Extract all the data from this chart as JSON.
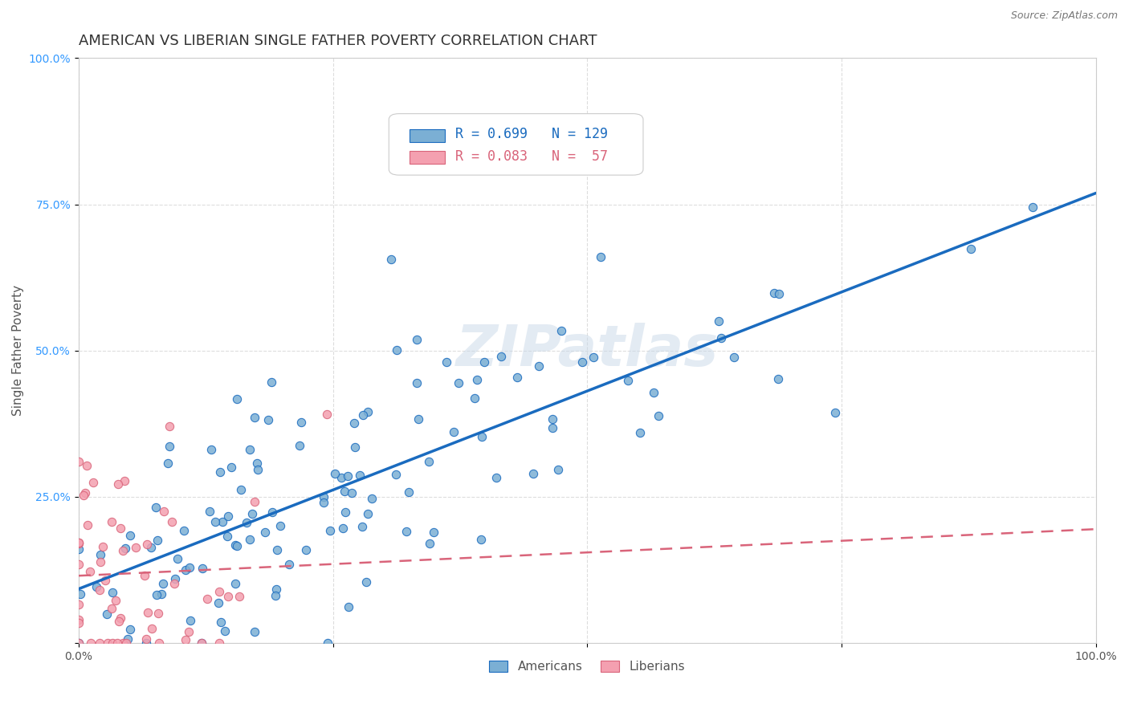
{
  "title": "AMERICAN VS LIBERIAN SINGLE FATHER POVERTY CORRELATION CHART",
  "source": "Source: ZipAtlas.com",
  "xlabel": "",
  "ylabel": "Single Father Poverty",
  "xlim": [
    0,
    1
  ],
  "ylim": [
    0,
    1
  ],
  "xticks": [
    0,
    0.25,
    0.5,
    0.75,
    1.0
  ],
  "yticks": [
    0,
    0.25,
    0.5,
    0.75,
    1.0
  ],
  "xticklabels": [
    "0.0%",
    "",
    "",
    "",
    "100.0%"
  ],
  "yticklabels": [
    "",
    "25.0%",
    "50.0%",
    "75.0%",
    "100.0%"
  ],
  "americans_R": 0.699,
  "americans_N": 129,
  "liberians_R": 0.083,
  "liberians_N": 57,
  "american_color": "#7bafd4",
  "liberian_color": "#f4a0b0",
  "american_line_color": "#1a6bbf",
  "liberian_line_color": "#d9647a",
  "watermark": "ZIPatlas",
  "watermark_color": "#c8d8e8",
  "background_color": "#ffffff",
  "grid_color": "#dddddd",
  "title_fontsize": 13,
  "axis_label_fontsize": 11,
  "tick_fontsize": 10,
  "legend_fontsize": 12,
  "american_seed": 42,
  "liberian_seed": 7
}
